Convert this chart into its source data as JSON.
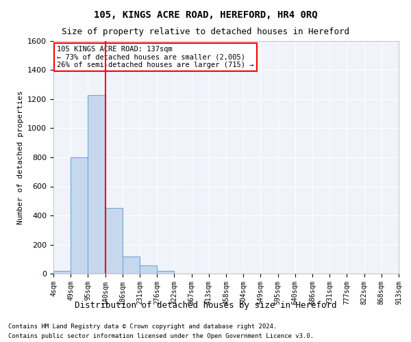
{
  "title1": "105, KINGS ACRE ROAD, HEREFORD, HR4 0RQ",
  "title2": "Size of property relative to detached houses in Hereford",
  "xlabel": "Distribution of detached houses by size in Hereford",
  "ylabel": "Number of detached properties",
  "footer1": "Contains HM Land Registry data © Crown copyright and database right 2024.",
  "footer2": "Contains public sector information licensed under the Open Government Licence v3.0.",
  "annotation_line1": "105 KINGS ACRE ROAD: 137sqm",
  "annotation_line2": "← 73% of detached houses are smaller (2,005)",
  "annotation_line3": "26% of semi-detached houses are larger (715) →",
  "bin_labels": [
    "4sqm",
    "49sqm",
    "95sqm",
    "140sqm",
    "186sqm",
    "231sqm",
    "276sqm",
    "322sqm",
    "367sqm",
    "413sqm",
    "458sqm",
    "504sqm",
    "549sqm",
    "595sqm",
    "640sqm",
    "686sqm",
    "731sqm",
    "777sqm",
    "822sqm",
    "868sqm",
    "913sqm"
  ],
  "bar_values": [
    20,
    800,
    1230,
    450,
    120,
    55,
    20,
    0,
    0,
    0,
    0,
    0,
    0,
    0,
    0,
    0,
    0,
    0,
    0,
    0
  ],
  "bar_color": "#c5d8ed",
  "bar_edge_color": "#6fa8d4",
  "red_line_x": 2.5,
  "ylim": [
    0,
    1600
  ],
  "yticks": [
    0,
    200,
    400,
    600,
    800,
    1000,
    1200,
    1400,
    1600
  ],
  "bg_color": "#f0f4fa",
  "grid_color": "#ffffff"
}
